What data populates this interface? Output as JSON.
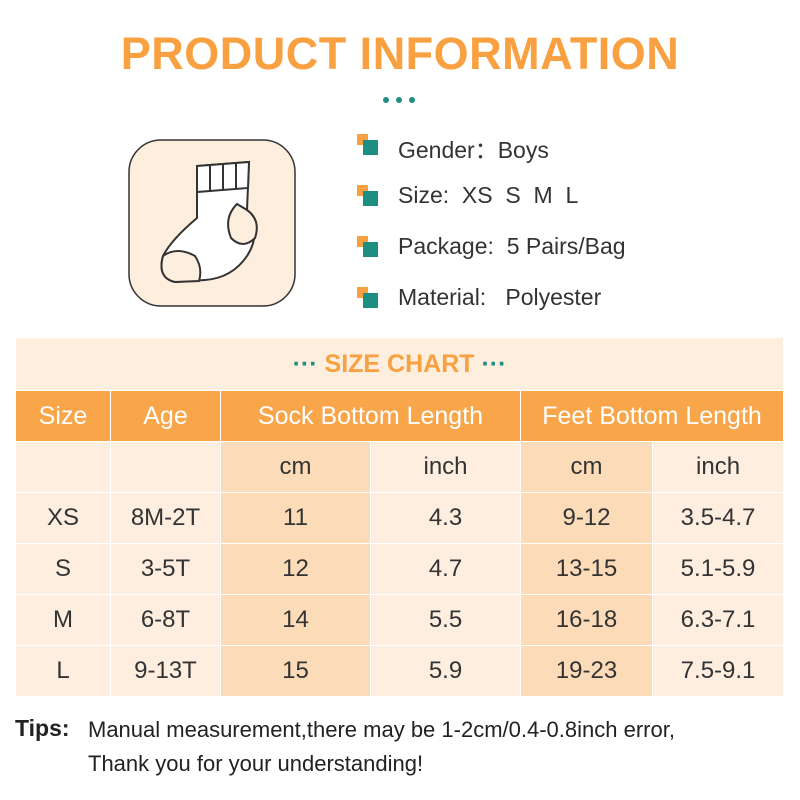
{
  "header": {
    "title": "PRODUCT INFORMATION"
  },
  "info": [
    {
      "label": "Gender：",
      "value": "Boys"
    },
    {
      "label": "Size:  ",
      "value": "XS  S  M  L"
    },
    {
      "label": "Package:  ",
      "value": "5 Pairs/Bag"
    },
    {
      "label": "Material:   ",
      "value": "Polyester"
    }
  ],
  "size_chart": {
    "title": "SIZE CHART",
    "headers": [
      "Size",
      "Age",
      "Sock Bottom Length",
      "Feet Bottom Length"
    ],
    "subheaders": [
      "cm",
      "inch",
      "cm",
      "inch"
    ],
    "rows": [
      [
        "XS",
        "8M-2T",
        "11",
        "4.3",
        "9-12",
        "3.5-4.7"
      ],
      [
        "S",
        "3-5T",
        "12",
        "4.7",
        "13-15",
        "5.1-5.9"
      ],
      [
        "M",
        "6-8T",
        "14",
        "5.5",
        "16-18",
        "6.3-7.1"
      ],
      [
        "L",
        "9-13T",
        "15",
        "5.9",
        "19-23",
        "7.5-9.1"
      ]
    ]
  },
  "tips": {
    "label": "Tips:",
    "lines": [
      "Manual measurement,there may be 1-2cm/0.4-0.8inch error,",
      "Thank you for your understanding!"
    ]
  }
}
